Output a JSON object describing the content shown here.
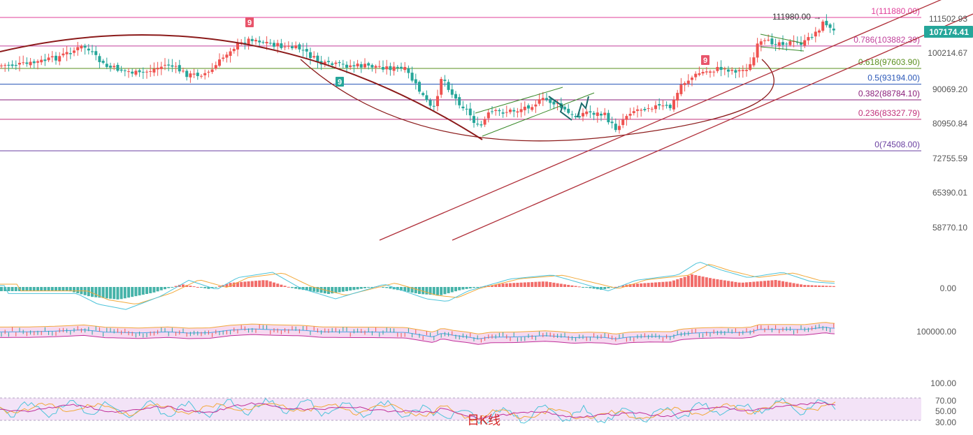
{
  "chart_data": [
    {
      "type": "candlestick",
      "symbol": "",
      "title": "",
      "interval_label": "日K线",
      "y_scale": "price",
      "y_ticks": [
        "111502.93",
        "100214.67",
        "90069.20",
        "80950.84",
        "72755.59",
        "65390.01",
        "58770.10"
      ],
      "current_price": "107174.41",
      "high_label": "111980.00",
      "fib_levels": [
        {
          "ratio": "1",
          "price": 111880.0,
          "label": "1(111880.00)",
          "color": "#e0409a"
        },
        {
          "ratio": "0.786",
          "price": 103882.39,
          "label": "0.786(103882.39)",
          "color": "#c03f9a"
        },
        {
          "ratio": "0.618",
          "price": 97603.9,
          "label": "0.618(97603.90)",
          "color": "#5a8f1e"
        },
        {
          "ratio": "0.5",
          "price": 93194.0,
          "label": "0.5(93194.00)",
          "color": "#2b58b8"
        },
        {
          "ratio": "0.382",
          "price": 88784.1,
          "label": "0.382(88784.10)",
          "color": "#8a1f7a"
        },
        {
          "ratio": "0.236",
          "price": 83327.79,
          "label": "0.236(83327.79)",
          "color": "#c0307a"
        },
        {
          "ratio": "0",
          "price": 74508.0,
          "label": "0(74508.00)",
          "color": "#6a3fa0"
        }
      ],
      "td_markers": [
        {
          "label": "9",
          "kind": "sell",
          "color": "#e8546a"
        },
        {
          "label": "9",
          "kind": "buy",
          "color": "#26a69a"
        },
        {
          "label": "9",
          "kind": "sell",
          "color": "#e8546a"
        }
      ],
      "colors": {
        "up": "#ef5350",
        "down": "#26a69a",
        "trend": "#b0303a",
        "arc": "#8b1a1a",
        "wedge": "#3a8a2a",
        "arrow": "#1a6a6a"
      }
    },
    {
      "type": "macd",
      "y_ticks": [
        "0.00"
      ]
    },
    {
      "type": "bollinger",
      "y_ticks": [
        "100000.00"
      ]
    },
    {
      "type": "rsi",
      "y_ticks": [
        "100.00",
        "70.00",
        "50.00",
        "30.00"
      ]
    }
  ]
}
